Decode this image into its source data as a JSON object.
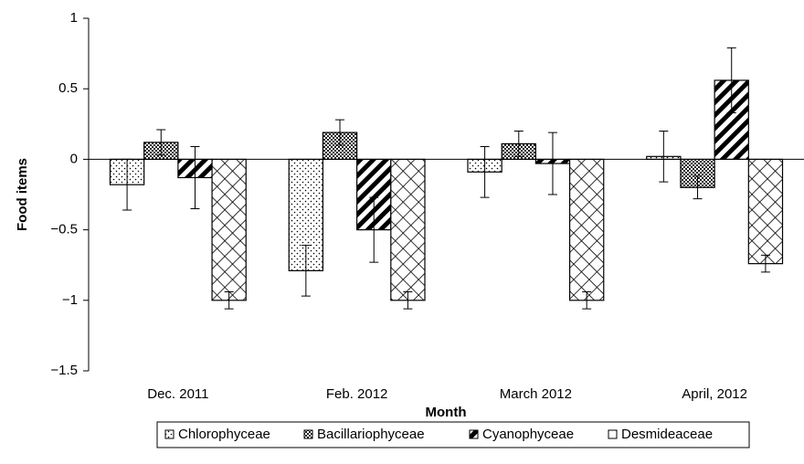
{
  "chart_data": {
    "type": "bar",
    "x_label": "Month",
    "y_label": "Food items",
    "categories": [
      "Dec. 2011",
      "Feb. 2012",
      "March 2012",
      "April, 2012"
    ],
    "series": [
      {
        "name": "Chlorophyceae",
        "color": "#000000",
        "values": [
          -0.18,
          -0.79,
          -0.09,
          0.02
        ],
        "errors": [
          0.18,
          0.18,
          0.18,
          0.18
        ]
      },
      {
        "name": "Bacillariophyceae",
        "color": "#000000",
        "values": [
          0.12,
          0.19,
          0.11,
          -0.2
        ],
        "errors": [
          0.09,
          0.09,
          0.09,
          0.08
        ]
      },
      {
        "name": "Cyanophyceae",
        "color": "#000000",
        "values": [
          -0.13,
          -0.5,
          -0.03,
          0.56
        ],
        "errors": [
          0.22,
          0.23,
          0.22,
          0.23
        ]
      },
      {
        "name": "Desmideaceae",
        "color": "#000000",
        "values": [
          -1.0,
          -1.0,
          -1.0,
          -0.74
        ],
        "errors": [
          0.06,
          0.06,
          0.06,
          0.06
        ]
      }
    ],
    "ylim": [
      -1.5,
      1
    ],
    "yticks": [
      {
        "value": -1.5,
        "label": "−1.5"
      },
      {
        "value": -1,
        "label": "−1"
      },
      {
        "value": -0.5,
        "label": "−0.5"
      },
      0,
      0.5,
      1
    ],
    "legend": "bottom"
  }
}
